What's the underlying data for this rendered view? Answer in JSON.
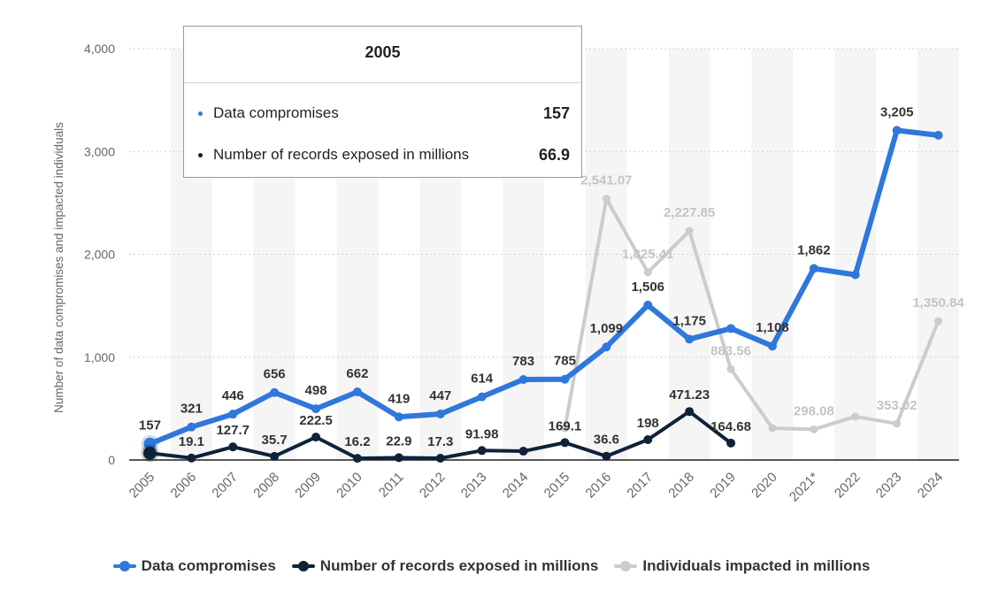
{
  "chart_data": {
    "type": "line",
    "ylabel": "Number of data compromises and impacted individuals",
    "xlabel": "",
    "ylim": [
      0,
      4000
    ],
    "yticks": [
      0,
      1000,
      2000,
      3000,
      4000
    ],
    "ytick_labels": [
      "0",
      "1,000",
      "2,000",
      "3,000",
      "4,000"
    ],
    "categories": [
      "2005",
      "2006",
      "2007",
      "2008",
      "2009",
      "2010",
      "2011",
      "2012",
      "2013",
      "2014",
      "2015",
      "2016",
      "2017",
      "2018",
      "2019",
      "2020",
      "2021*",
      "2022",
      "2023",
      "2024"
    ],
    "grid": "horizontal dotted",
    "legend_position": "bottom-center",
    "series": [
      {
        "name": "Data compromises",
        "color": "#2f77db",
        "values": [
          157,
          321,
          446,
          656,
          498,
          662,
          419,
          447,
          614,
          783,
          785,
          1099,
          1506,
          1175,
          1279,
          1108,
          1862,
          1801,
          3205,
          3158
        ],
        "labels": [
          "157",
          "321",
          "446",
          "656",
          "498",
          "662",
          "419",
          "447",
          "614",
          "783",
          "785",
          "1,099",
          "1,506",
          "1,175",
          null,
          "1,108",
          "1,862",
          null,
          "3,205",
          null
        ]
      },
      {
        "name": "Number of records exposed in millions",
        "color": "#0e2238",
        "values": [
          66.9,
          19.1,
          127.7,
          35.7,
          222.5,
          16.2,
          22.9,
          17.3,
          91.98,
          85.61,
          169.1,
          36.6,
          198,
          471.23,
          164.68,
          null,
          null,
          null,
          null,
          null
        ],
        "labels": [
          null,
          "19.1",
          "127.7",
          "35.7",
          "222.5",
          "16.2",
          "22.9",
          "17.3",
          "91.98",
          null,
          "169.1",
          "36.6",
          "198",
          "471.23",
          "164.68",
          null,
          null,
          null,
          null,
          null
        ]
      },
      {
        "name": "Individuals impacted in millions",
        "color": "#cccccc",
        "values": [
          null,
          null,
          null,
          null,
          null,
          null,
          null,
          null,
          null,
          null,
          310,
          2541.07,
          1825.41,
          2227.85,
          883.56,
          310,
          298.08,
          422,
          353.02,
          1350.84
        ],
        "labels": [
          null,
          null,
          null,
          null,
          null,
          null,
          null,
          null,
          null,
          null,
          null,
          "2,541.07",
          "1,825.41",
          "2,227.85",
          "883.56",
          null,
          "298.08",
          null,
          "353.02",
          "1,350.84"
        ]
      }
    ]
  },
  "tooltip": {
    "title": "2005",
    "rows": [
      {
        "name": "Data compromises",
        "value": "157",
        "color": "#2f77db"
      },
      {
        "name": "Number of records exposed in millions",
        "value": "66.9",
        "color": "#0e2238"
      }
    ]
  }
}
